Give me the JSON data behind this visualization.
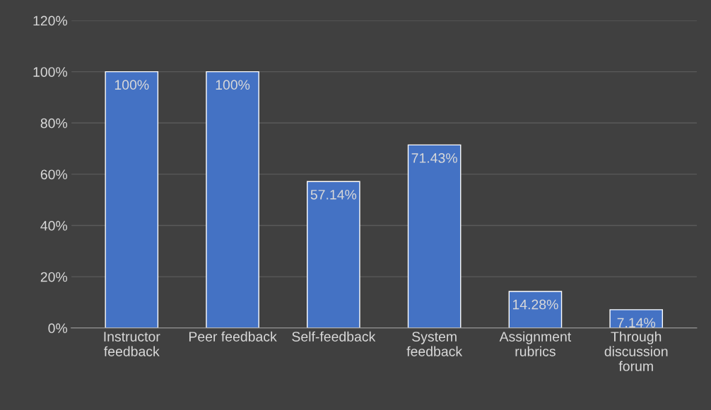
{
  "chart_data": {
    "type": "bar",
    "categories": [
      "Instructor\nfeedback",
      "Peer feedback",
      "Self-feedback",
      "System\nfeedback",
      "Assignment\nrubrics",
      "Through\ndiscussion\nforum"
    ],
    "values": [
      100,
      100,
      57.14,
      71.43,
      14.28,
      7.14
    ],
    "value_labels": [
      "100%",
      "100%",
      "57.14%",
      "71.43%",
      "14.28%",
      "7.14%"
    ],
    "color": "#4472c4",
    "ylim": [
      0,
      120
    ],
    "yticks": [
      {
        "value": 0,
        "label": "0%"
      },
      {
        "value": 20,
        "label": "20%"
      },
      {
        "value": 40,
        "label": "40%"
      },
      {
        "value": 60,
        "label": "60%"
      },
      {
        "value": 80,
        "label": "80%"
      },
      {
        "value": 100,
        "label": "100%"
      },
      {
        "value": 120,
        "label": "120%"
      }
    ],
    "grid": "y"
  }
}
